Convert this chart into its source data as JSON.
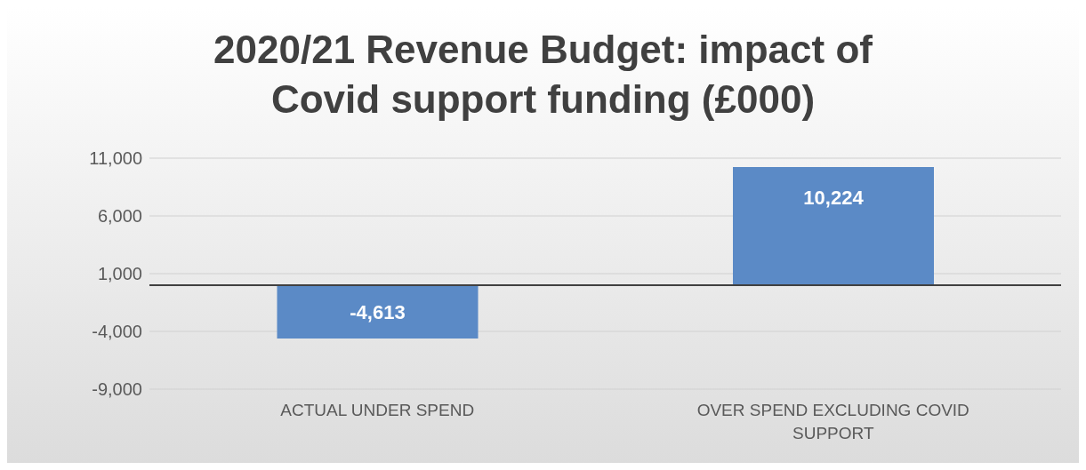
{
  "chart_data": {
    "type": "bar",
    "title": "2020/21 Revenue Budget: impact of Covid support funding (£000)",
    "categories": [
      "ACTUAL UNDER SPEND",
      "OVER SPEND EXCLUDING COVID SUPPORT"
    ],
    "values": [
      -4613,
      10224
    ],
    "color": "#5b8ac6",
    "value_labels": [
      "-4,613",
      "10,224"
    ],
    "ylim": [
      -9000,
      11000
    ],
    "yticks": [
      {
        "value": -9000,
        "label": "-9,000"
      },
      {
        "value": -4000,
        "label": "-4,000"
      },
      {
        "value": 1000,
        "label": "1,000"
      },
      {
        "value": 6000,
        "label": "6,000"
      },
      {
        "value": 11000,
        "label": "11,000"
      }
    ],
    "grid": "y"
  }
}
